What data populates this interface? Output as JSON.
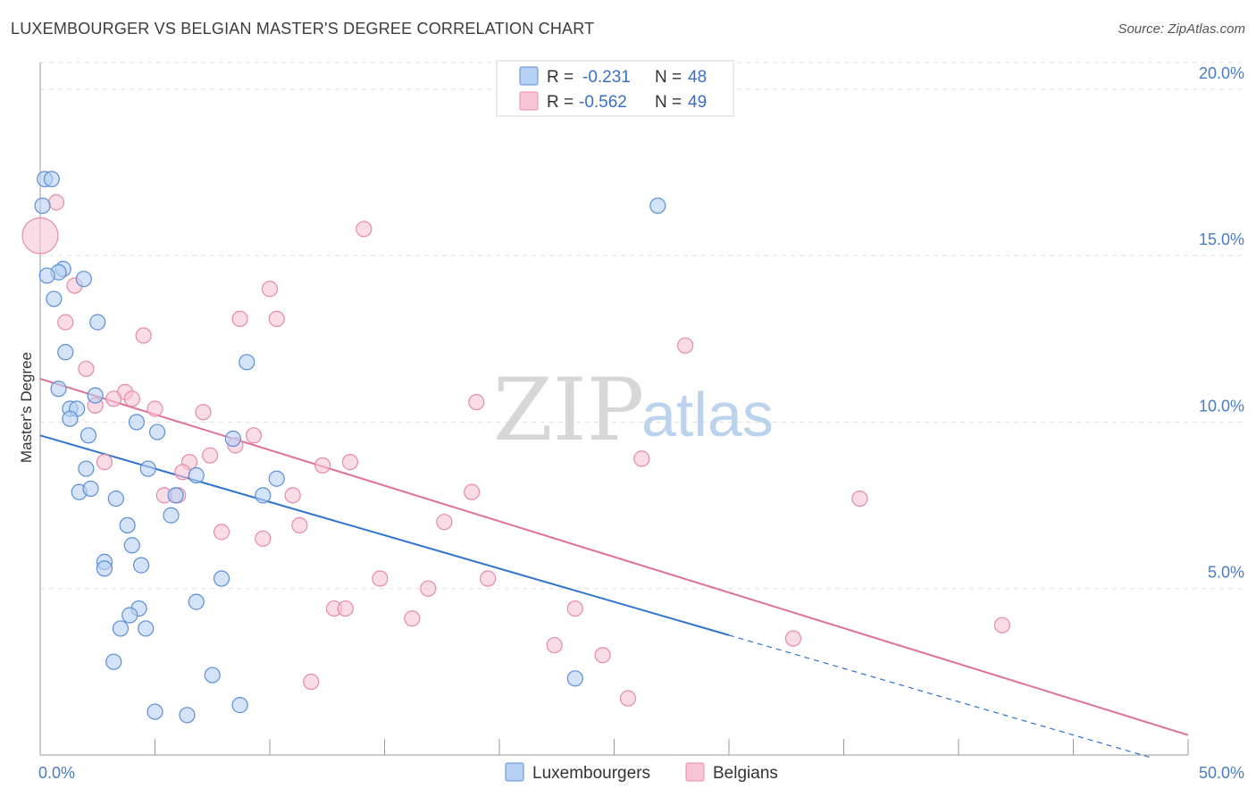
{
  "title": "LUXEMBOURGER VS BELGIAN MASTER'S DEGREE CORRELATION CHART",
  "source": "Source: ZipAtlas.com",
  "colors": {
    "lux_fill": "#b7d1f2",
    "lux_stroke": "#5b8fd6",
    "lux_line": "#2e74d0",
    "bel_fill": "#f7c5d6",
    "bel_stroke": "#e68aa9",
    "bel_line": "#e07099",
    "grid": "#dedede",
    "axis": "#999999"
  },
  "legend_top": {
    "rows": [
      {
        "series": "Luxembourgers",
        "r_label": "R =",
        "r_value": "-0.231",
        "n_label": "N =",
        "n_value": "48"
      },
      {
        "series": "Belgians",
        "r_label": "R =",
        "r_value": "-0.562",
        "n_label": "N =",
        "n_value": "49"
      }
    ]
  },
  "legend_bottom": [
    "Luxembourgers",
    "Belgians"
  ],
  "watermark": {
    "zip": "ZIP",
    "atlas": "atlas"
  },
  "chart_data": {
    "type": "scatter",
    "title": "LUXEMBOURGER VS BELGIAN MASTER'S DEGREE CORRELATION CHART",
    "xlabel": "",
    "ylabel": "Master's Degree",
    "xlim": [
      0,
      50
    ],
    "ylim": [
      0,
      20.8
    ],
    "x_tick_labels": [
      {
        "value": 0,
        "label": "0.0%"
      },
      {
        "value": 50,
        "label": "50.0%"
      }
    ],
    "x_minor_ticks": [
      5,
      10,
      15,
      20,
      25,
      30,
      35,
      40,
      45,
      50
    ],
    "y_ticks": [
      {
        "value": 5,
        "label": "5.0%"
      },
      {
        "value": 10,
        "label": "10.0%"
      },
      {
        "value": 15,
        "label": "15.0%"
      },
      {
        "value": 20,
        "label": "20.0%"
      }
    ],
    "grid": true,
    "series": [
      {
        "name": "Luxembourgers",
        "r": -0.231,
        "n": 48,
        "trend": {
          "x0": 0,
          "y0": 9.6,
          "x1": 30,
          "y1": 3.6,
          "dash_to_x": 48.5
        },
        "points": [
          [
            0.2,
            17.3
          ],
          [
            0.5,
            17.3
          ],
          [
            0.1,
            16.5
          ],
          [
            1.0,
            14.6
          ],
          [
            0.8,
            14.5
          ],
          [
            0.3,
            14.4
          ],
          [
            1.9,
            14.3
          ],
          [
            0.6,
            13.7
          ],
          [
            2.5,
            13.0
          ],
          [
            1.1,
            12.1
          ],
          [
            0.8,
            11.0
          ],
          [
            9.0,
            11.8
          ],
          [
            1.3,
            10.4
          ],
          [
            1.6,
            10.4
          ],
          [
            1.3,
            10.1
          ],
          [
            2.4,
            10.8
          ],
          [
            4.2,
            10.0
          ],
          [
            5.1,
            9.7
          ],
          [
            2.1,
            9.6
          ],
          [
            8.4,
            9.5
          ],
          [
            2.0,
            8.6
          ],
          [
            4.7,
            8.6
          ],
          [
            6.8,
            8.4
          ],
          [
            10.3,
            8.3
          ],
          [
            1.7,
            7.9
          ],
          [
            2.2,
            8.0
          ],
          [
            3.3,
            7.7
          ],
          [
            5.9,
            7.8
          ],
          [
            9.7,
            7.8
          ],
          [
            5.7,
            7.2
          ],
          [
            3.8,
            6.9
          ],
          [
            4.0,
            6.3
          ],
          [
            2.8,
            5.8
          ],
          [
            2.8,
            5.6
          ],
          [
            4.4,
            5.7
          ],
          [
            7.9,
            5.3
          ],
          [
            4.3,
            4.4
          ],
          [
            6.8,
            4.6
          ],
          [
            3.9,
            4.2
          ],
          [
            3.5,
            3.8
          ],
          [
            4.6,
            3.8
          ],
          [
            3.2,
            2.8
          ],
          [
            7.5,
            2.4
          ],
          [
            23.3,
            2.3
          ],
          [
            5.0,
            1.3
          ],
          [
            6.4,
            1.2
          ],
          [
            8.7,
            1.5
          ],
          [
            26.9,
            16.5
          ]
        ]
      },
      {
        "name": "Belgians",
        "r": -0.562,
        "n": 49,
        "trend": {
          "x0": 0,
          "y0": 11.3,
          "x1": 50,
          "y1": 0.6
        },
        "points": [
          [
            0.0,
            15.6
          ],
          [
            0.7,
            16.6
          ],
          [
            14.1,
            15.8
          ],
          [
            1.5,
            14.1
          ],
          [
            10.0,
            14.0
          ],
          [
            1.1,
            13.0
          ],
          [
            8.7,
            13.1
          ],
          [
            10.3,
            13.1
          ],
          [
            4.5,
            12.6
          ],
          [
            28.1,
            12.3
          ],
          [
            2.0,
            11.6
          ],
          [
            3.7,
            10.9
          ],
          [
            3.2,
            10.7
          ],
          [
            4.0,
            10.7
          ],
          [
            2.4,
            10.5
          ],
          [
            19.0,
            10.6
          ],
          [
            5.0,
            10.4
          ],
          [
            7.1,
            10.3
          ],
          [
            9.3,
            9.6
          ],
          [
            8.5,
            9.3
          ],
          [
            7.4,
            9.0
          ],
          [
            6.5,
            8.8
          ],
          [
            2.8,
            8.8
          ],
          [
            12.3,
            8.7
          ],
          [
            13.5,
            8.8
          ],
          [
            26.2,
            8.9
          ],
          [
            6.2,
            8.5
          ],
          [
            5.4,
            7.8
          ],
          [
            6.0,
            7.8
          ],
          [
            11.0,
            7.8
          ],
          [
            18.8,
            7.9
          ],
          [
            35.7,
            7.7
          ],
          [
            17.6,
            7.0
          ],
          [
            11.3,
            6.9
          ],
          [
            7.9,
            6.7
          ],
          [
            9.7,
            6.5
          ],
          [
            14.8,
            5.3
          ],
          [
            19.5,
            5.3
          ],
          [
            16.9,
            5.0
          ],
          [
            12.8,
            4.4
          ],
          [
            13.3,
            4.4
          ],
          [
            23.3,
            4.4
          ],
          [
            16.2,
            4.1
          ],
          [
            41.9,
            3.9
          ],
          [
            32.8,
            3.5
          ],
          [
            22.4,
            3.3
          ],
          [
            24.5,
            3.0
          ],
          [
            11.8,
            2.2
          ],
          [
            25.6,
            1.7
          ]
        ]
      }
    ]
  }
}
